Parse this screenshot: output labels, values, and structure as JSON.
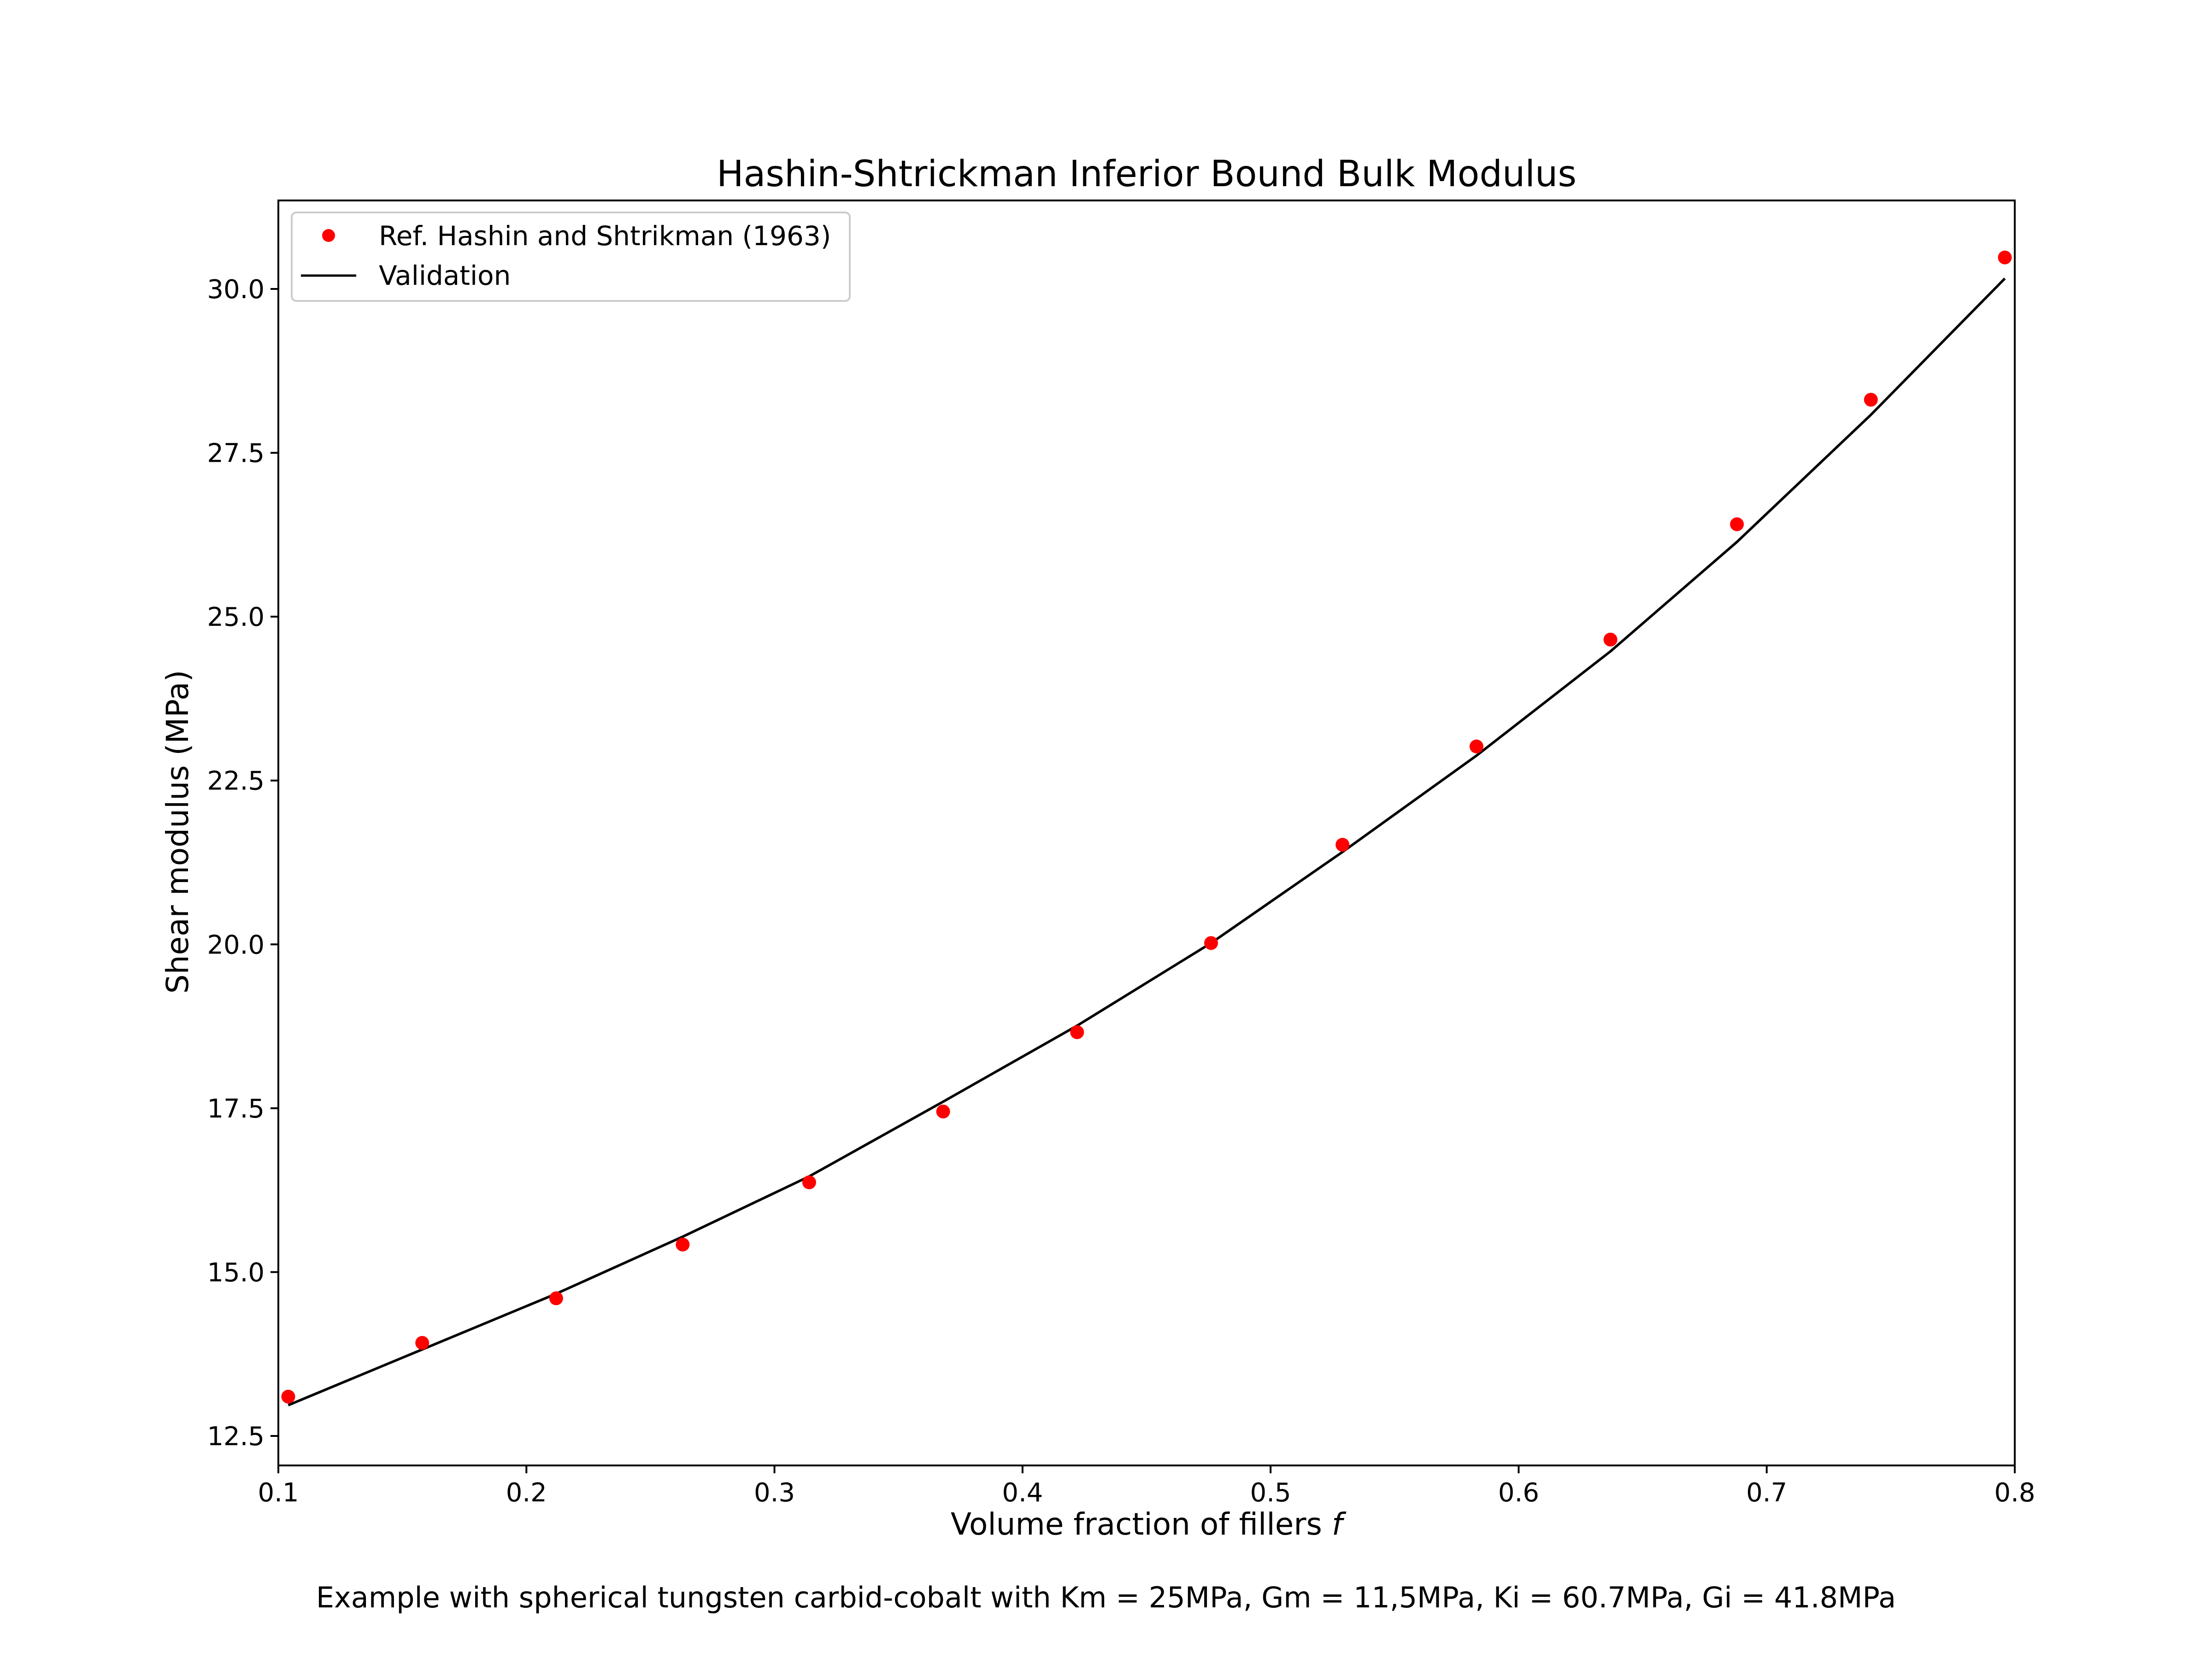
{
  "chart_data": {
    "type": "line",
    "title": "Hashin-Shtrickman Inferior Bound Bulk Modulus",
    "xlabel": "Volume fraction of fillers ",
    "xlabel_italic": "f",
    "ylabel": "Shear modulus (MPa)",
    "caption": "Example with spherical tungsten carbid-cobalt with Km = 25MPa, Gm = 11,5MPa, Ki = 60.7MPa, Gi = 41.8MPa",
    "xlim": [
      0.1,
      0.8
    ],
    "ylim": [
      12.05,
      31.35
    ],
    "xticks": [
      0.1,
      0.2,
      0.3,
      0.4,
      0.5,
      0.6,
      0.7,
      0.8
    ],
    "xtick_labels": [
      "0.1",
      "0.2",
      "0.3",
      "0.4",
      "0.5",
      "0.6",
      "0.7",
      "0.8"
    ],
    "yticks": [
      12.5,
      15.0,
      17.5,
      20.0,
      22.5,
      25.0,
      27.5,
      30.0
    ],
    "ytick_labels": [
      "12.5",
      "15.0",
      "17.5",
      "20.0",
      "22.5",
      "25.0",
      "27.5",
      "30.0"
    ],
    "grid": false,
    "legend_position": "top-left",
    "series": [
      {
        "name": "Ref. Hashin and Shtrikman (1963)",
        "kind": "scatter",
        "color": "#ff0000",
        "x": [
          0.104,
          0.158,
          0.212,
          0.263,
          0.314,
          0.368,
          0.422,
          0.476,
          0.529,
          0.583,
          0.637,
          0.688,
          0.742,
          0.796
        ],
        "y": [
          13.1,
          13.92,
          14.6,
          15.42,
          16.37,
          17.45,
          18.66,
          20.02,
          21.52,
          23.02,
          24.65,
          26.41,
          28.31,
          30.48
        ]
      },
      {
        "name": "Validation",
        "kind": "line",
        "color": "#000000",
        "x": [
          0.104,
          0.158,
          0.212,
          0.263,
          0.314,
          0.368,
          0.422,
          0.476,
          0.529,
          0.583,
          0.637,
          0.688,
          0.742,
          0.796
        ],
        "y": [
          12.97,
          13.82,
          14.67,
          15.54,
          16.46,
          17.6,
          18.76,
          20.02,
          21.41,
          22.88,
          24.47,
          26.14,
          28.08,
          30.16
        ]
      }
    ]
  }
}
